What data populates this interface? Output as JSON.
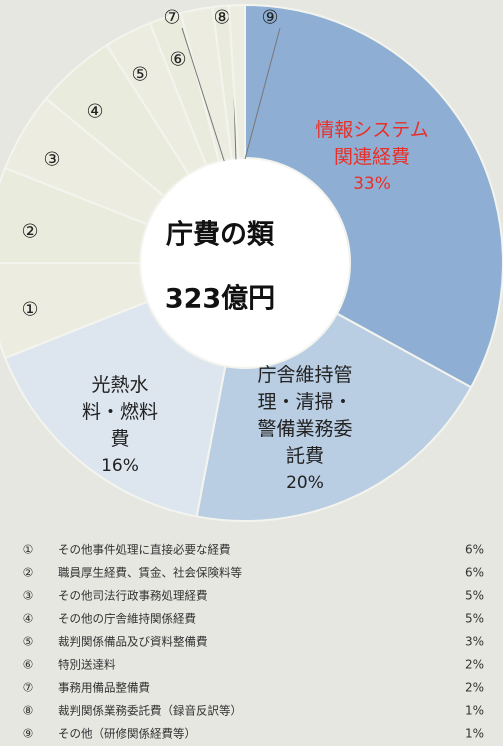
{
  "chart_data": {
    "type": "donut",
    "center_text": [
      "庁費の類",
      "323億円"
    ],
    "categories": [
      "情報システム\n関連経費",
      "庁舎維持管\n理・清掃・\n警備業務委\n託費",
      "光熱水\n料・燃料\n費",
      "①",
      "②",
      "③",
      "④",
      "⑤",
      "⑥",
      "⑦",
      "⑧",
      "⑨"
    ],
    "values": [
      33,
      20,
      16,
      6,
      6,
      5,
      5,
      3,
      2,
      2,
      1,
      1
    ],
    "value_labels": [
      "33%",
      "20%",
      "16%",
      "6%",
      "6%",
      "5%",
      "5%",
      "3%",
      "2%",
      "2%",
      "1%",
      "1%"
    ],
    "colors": [
      "#8eafd3",
      "#b9cde3",
      "#dde6ef",
      "#ecede0",
      "#e9ebdc",
      "#ecede0",
      "#e9ebdc",
      "#ecede0",
      "#e9ebdc",
      "#ecede0",
      "#e9ebdc",
      "#ecede0"
    ],
    "legend_texts": [
      "その他事件処理に直接必要な経費",
      "職員厚生経費、賃金、社会保険料等",
      "その他司法行政事務処理経費",
      "その他の庁舎維持関係経費",
      "裁判関係備品及び資料整備費",
      "特別送達料",
      "事務用備品整備費",
      "裁判関係業務委託費（録音反訳等）",
      "その他（研修関係経費等）"
    ]
  }
}
